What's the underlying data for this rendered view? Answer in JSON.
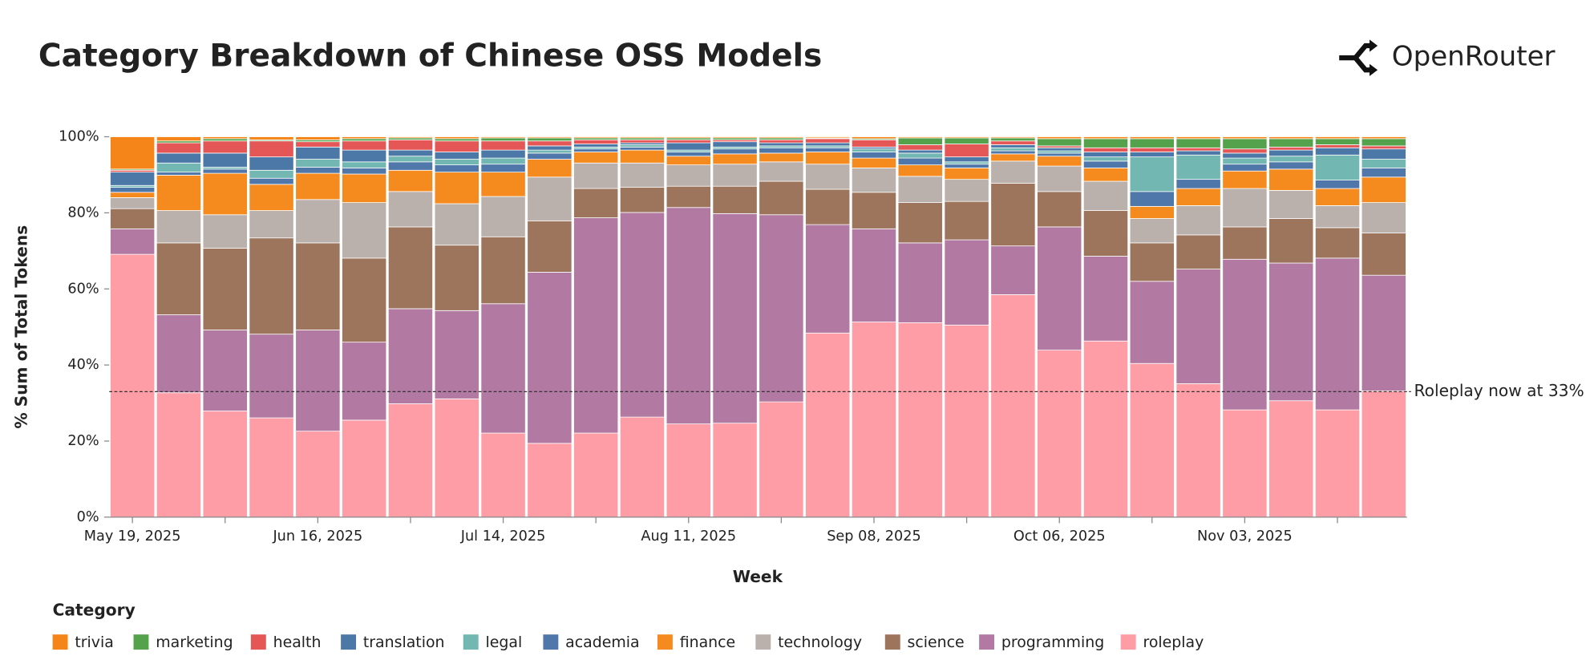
{
  "chart_data": {
    "type": "stacked_bar",
    "title": "Category Breakdown of Chinese OSS Models",
    "brand": "OpenRouter",
    "y_label": "% Sum of Total Tokens",
    "x_label": "Week",
    "legend_title": "Category",
    "categories": [
      "May 19, 2025",
      null,
      null,
      null,
      "Jun 16, 2025",
      null,
      null,
      null,
      "Jul 14, 2025",
      null,
      null,
      null,
      "Aug 11, 2025",
      null,
      null,
      null,
      "Sep 08, 2025",
      null,
      null,
      null,
      "Oct 06, 2025",
      null,
      null,
      null,
      "Nov 03, 2025",
      null,
      null,
      null
    ],
    "ylim": [
      0,
      100
    ],
    "yticks": [
      {
        "value": 0,
        "label": "0%"
      },
      {
        "value": 20,
        "label": "20%"
      },
      {
        "value": 40,
        "label": "40%"
      },
      {
        "value": 60,
        "label": "60%"
      },
      {
        "value": 80,
        "label": "80%"
      },
      {
        "value": 100,
        "label": "100%"
      }
    ],
    "annotations": [
      {
        "value": 33,
        "label": "Roleplay now at 33%"
      }
    ],
    "series": [
      {
        "name": "trivia",
        "color": "#f58518",
        "values": [
          8.5,
          1.1,
          0.5,
          0.8,
          0.8,
          0.5,
          0.3,
          0.5,
          0.3,
          0.3,
          0.3,
          0.3,
          0.3,
          0.3,
          0.3,
          0.3,
          0.5,
          0.3,
          0.3,
          0.3,
          0.5,
          0.5,
          0.5,
          0.5,
          0.5,
          0.5,
          0.5,
          0.5
        ]
      },
      {
        "name": "marketing",
        "color": "#54a24b",
        "values": [
          0.3,
          0.5,
          0.6,
          0.3,
          0.5,
          0.6,
          0.5,
          0.6,
          0.8,
          0.8,
          0.5,
          0.5,
          0.5,
          0.5,
          0.5,
          0.2,
          0.3,
          1.8,
          1.6,
          0.8,
          1.9,
          2.4,
          2.4,
          2.4,
          2.7,
          2.2,
          1.6,
          1.9
        ]
      },
      {
        "name": "health",
        "color": "#e45756",
        "values": [
          0.5,
          2.7,
          3.2,
          4.2,
          1.4,
          2.4,
          2.7,
          2.9,
          2.4,
          1.3,
          1.1,
          0.8,
          0.8,
          0.5,
          0.8,
          1.1,
          1.9,
          1.4,
          3.4,
          1.0,
          0.5,
          1.1,
          1.1,
          0.8,
          1.1,
          0.8,
          0.8,
          0.8
        ]
      },
      {
        "name": "translation",
        "color": "#4c78a8",
        "values": [
          3.5,
          2.6,
          3.7,
          3.5,
          3.2,
          3.1,
          1.6,
          1.9,
          2.1,
          1.1,
          0.8,
          0.5,
          1.9,
          1.4,
          0.8,
          0.8,
          0.5,
          0.8,
          1.3,
          0.8,
          0.8,
          1.3,
          1.3,
          1.1,
          1.3,
          1.6,
          1.9,
          2.7
        ]
      },
      {
        "name": "legal",
        "color": "#72b7b2",
        "values": [
          0.5,
          2.4,
          0.5,
          2.1,
          2.1,
          1.6,
          1.5,
          1.5,
          1.6,
          0.8,
          0.5,
          0.6,
          0.5,
          0.5,
          0.5,
          0.5,
          0.8,
          1.3,
          0.6,
          0.8,
          0.6,
          1.1,
          9.1,
          6.4,
          1.6,
          1.5,
          6.6,
          2.3
        ]
      },
      {
        "name": "academia",
        "color": "#4f77aa",
        "values": [
          1.3,
          0.8,
          1.1,
          1.6,
          1.6,
          1.6,
          2.2,
          1.9,
          2.1,
          1.6,
          0.8,
          0.8,
          1.1,
          1.3,
          1.4,
          1.1,
          1.6,
          1.8,
          1.0,
          0.8,
          0.8,
          1.8,
          3.9,
          2.4,
          1.8,
          1.9,
          2.2,
          2.4
        ]
      },
      {
        "name": "finance",
        "color": "#f58a1f",
        "values": [
          1.4,
          9.3,
          10.9,
          6.9,
          6.9,
          7.5,
          5.6,
          8.3,
          6.4,
          4.7,
          2.9,
          3.4,
          2.3,
          2.7,
          2.3,
          3.2,
          2.6,
          3.0,
          3.0,
          1.9,
          2.6,
          3.5,
          3.2,
          4.5,
          4.6,
          5.6,
          4.5,
          6.7
        ]
      },
      {
        "name": "technology",
        "color": "#bab0ac",
        "values": [
          2.9,
          8.5,
          8.8,
          7.2,
          11.4,
          14.6,
          9.3,
          10.9,
          10.6,
          11.5,
          6.7,
          6.4,
          5.6,
          5.8,
          5.1,
          6.6,
          6.4,
          6.9,
          5.8,
          5.8,
          6.7,
          7.7,
          6.4,
          7.7,
          10.1,
          7.4,
          5.8,
          8.0
        ]
      },
      {
        "name": "science",
        "color": "#9d755d",
        "values": [
          5.3,
          18.9,
          21.5,
          25.3,
          22.9,
          22.1,
          21.5,
          17.2,
          17.6,
          13.5,
          7.7,
          6.6,
          5.6,
          7.2,
          8.8,
          9.3,
          9.6,
          10.6,
          10.1,
          16.5,
          9.3,
          12.0,
          10.1,
          9.0,
          8.5,
          11.7,
          8.0,
          11.1
        ]
      },
      {
        "name": "programming",
        "color": "#b279a2",
        "values": [
          6.7,
          20.5,
          21.3,
          22.0,
          26.6,
          20.5,
          25.0,
          23.2,
          34.0,
          45.0,
          56.6,
          53.8,
          56.9,
          55.1,
          49.2,
          28.5,
          24.5,
          21.0,
          22.4,
          12.8,
          32.4,
          22.3,
          21.6,
          30.1,
          39.6,
          36.2,
          39.9,
          30.4
        ]
      },
      {
        "name": "roleplay",
        "color": "#ff9da6",
        "values": [
          69.1,
          32.7,
          27.9,
          26.1,
          22.6,
          25.5,
          29.8,
          31.1,
          22.1,
          19.4,
          22.1,
          26.3,
          24.5,
          24.7,
          30.3,
          48.4,
          51.3,
          51.1,
          50.5,
          58.5,
          43.9,
          46.3,
          40.4,
          35.1,
          28.2,
          30.6,
          28.2,
          33.2
        ]
      }
    ]
  }
}
